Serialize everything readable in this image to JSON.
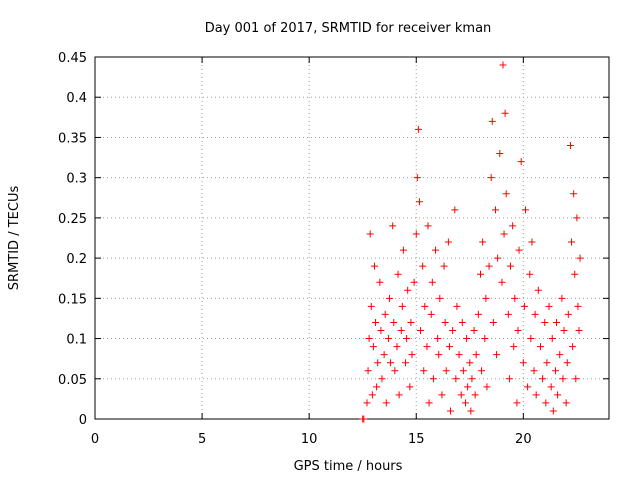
{
  "chart_data": {
    "type": "scatter",
    "title": "Day 001 of 2017, SRMTID for receiver kman",
    "xlabel": "GPS time / hours",
    "ylabel": "SRMTID / TECUs",
    "xlim": [
      0,
      24
    ],
    "ylim": [
      0,
      0.45
    ],
    "x_ticks": [
      "0",
      "5",
      "10",
      "15",
      "20"
    ],
    "y_ticks": [
      "0",
      "0.05",
      "0.1",
      "0.15",
      "0.2",
      "0.25",
      "0.3",
      "0.35",
      "0.4",
      "0.45"
    ],
    "grid": true,
    "marker": "plus",
    "color": "#ff0000",
    "series": [
      {
        "points": [
          [
            12.5,
            0.0
          ],
          [
            12.55,
            0.0
          ],
          [
            12.7,
            0.02
          ],
          [
            12.75,
            0.06
          ],
          [
            12.8,
            0.1
          ],
          [
            12.85,
            0.23
          ],
          [
            12.9,
            0.14
          ],
          [
            12.95,
            0.03
          ],
          [
            13.0,
            0.09
          ],
          [
            13.05,
            0.19
          ],
          [
            13.1,
            0.12
          ],
          [
            13.15,
            0.04
          ],
          [
            13.2,
            0.07
          ],
          [
            13.3,
            0.17
          ],
          [
            13.35,
            0.11
          ],
          [
            13.4,
            0.05
          ],
          [
            13.5,
            0.08
          ],
          [
            13.55,
            0.13
          ],
          [
            13.6,
            0.02
          ],
          [
            13.7,
            0.1
          ],
          [
            13.75,
            0.15
          ],
          [
            13.8,
            0.07
          ],
          [
            13.9,
            0.24
          ],
          [
            13.95,
            0.12
          ],
          [
            14.0,
            0.06
          ],
          [
            14.1,
            0.09
          ],
          [
            14.15,
            0.18
          ],
          [
            14.2,
            0.03
          ],
          [
            14.3,
            0.11
          ],
          [
            14.35,
            0.14
          ],
          [
            14.4,
            0.21
          ],
          [
            14.5,
            0.07
          ],
          [
            14.55,
            0.1
          ],
          [
            14.6,
            0.16
          ],
          [
            14.7,
            0.04
          ],
          [
            14.75,
            0.12
          ],
          [
            14.8,
            0.08
          ],
          [
            14.9,
            0.17
          ],
          [
            15.0,
            0.23
          ],
          [
            15.05,
            0.3
          ],
          [
            15.1,
            0.36
          ],
          [
            15.15,
            0.27
          ],
          [
            15.2,
            0.11
          ],
          [
            15.3,
            0.19
          ],
          [
            15.35,
            0.06
          ],
          [
            15.4,
            0.14
          ],
          [
            15.5,
            0.09
          ],
          [
            15.55,
            0.24
          ],
          [
            15.6,
            0.02
          ],
          [
            15.7,
            0.13
          ],
          [
            15.75,
            0.17
          ],
          [
            15.8,
            0.05
          ],
          [
            15.9,
            0.21
          ],
          [
            16.0,
            0.1
          ],
          [
            16.05,
            0.08
          ],
          [
            16.1,
            0.15
          ],
          [
            16.2,
            0.03
          ],
          [
            16.3,
            0.19
          ],
          [
            16.35,
            0.12
          ],
          [
            16.4,
            0.06
          ],
          [
            16.5,
            0.22
          ],
          [
            16.55,
            0.09
          ],
          [
            16.6,
            0.01
          ],
          [
            16.7,
            0.11
          ],
          [
            16.8,
            0.26
          ],
          [
            16.85,
            0.05
          ],
          [
            16.9,
            0.14
          ],
          [
            17.0,
            0.08
          ],
          [
            17.1,
            0.03
          ],
          [
            17.15,
            0.12
          ],
          [
            17.2,
            0.06
          ],
          [
            17.3,
            0.02
          ],
          [
            17.35,
            0.1
          ],
          [
            17.4,
            0.04
          ],
          [
            17.5,
            0.07
          ],
          [
            17.55,
            0.01
          ],
          [
            17.6,
            0.05
          ],
          [
            17.7,
            0.11
          ],
          [
            17.75,
            0.03
          ],
          [
            17.8,
            0.08
          ],
          [
            17.9,
            0.13
          ],
          [
            18.0,
            0.18
          ],
          [
            18.05,
            0.06
          ],
          [
            18.1,
            0.22
          ],
          [
            18.2,
            0.1
          ],
          [
            18.25,
            0.15
          ],
          [
            18.3,
            0.04
          ],
          [
            18.4,
            0.19
          ],
          [
            18.5,
            0.3
          ],
          [
            18.55,
            0.37
          ],
          [
            18.6,
            0.12
          ],
          [
            18.7,
            0.26
          ],
          [
            18.75,
            0.08
          ],
          [
            18.8,
            0.2
          ],
          [
            18.9,
            0.33
          ],
          [
            19.0,
            0.17
          ],
          [
            19.05,
            0.44
          ],
          [
            19.1,
            0.23
          ],
          [
            19.15,
            0.38
          ],
          [
            19.2,
            0.28
          ],
          [
            19.3,
            0.13
          ],
          [
            19.35,
            0.05
          ],
          [
            19.4,
            0.19
          ],
          [
            19.5,
            0.24
          ],
          [
            19.55,
            0.09
          ],
          [
            19.6,
            0.15
          ],
          [
            19.7,
            0.02
          ],
          [
            19.75,
            0.11
          ],
          [
            19.8,
            0.21
          ],
          [
            19.9,
            0.32
          ],
          [
            20.0,
            0.07
          ],
          [
            20.05,
            0.14
          ],
          [
            20.1,
            0.26
          ],
          [
            20.2,
            0.04
          ],
          [
            20.3,
            0.18
          ],
          [
            20.35,
            0.1
          ],
          [
            20.4,
            0.22
          ],
          [
            20.5,
            0.06
          ],
          [
            20.55,
            0.13
          ],
          [
            20.6,
            0.03
          ],
          [
            20.7,
            0.16
          ],
          [
            20.8,
            0.09
          ],
          [
            20.9,
            0.05
          ],
          [
            21.0,
            0.12
          ],
          [
            21.05,
            0.02
          ],
          [
            21.1,
            0.07
          ],
          [
            21.2,
            0.14
          ],
          [
            21.3,
            0.04
          ],
          [
            21.35,
            0.1
          ],
          [
            21.4,
            0.01
          ],
          [
            21.5,
            0.06
          ],
          [
            21.55,
            0.12
          ],
          [
            21.6,
            0.03
          ],
          [
            21.7,
            0.08
          ],
          [
            21.8,
            0.15
          ],
          [
            21.85,
            0.05
          ],
          [
            21.9,
            0.11
          ],
          [
            22.0,
            0.02
          ],
          [
            22.05,
            0.07
          ],
          [
            22.1,
            0.13
          ],
          [
            22.2,
            0.34
          ],
          [
            22.25,
            0.22
          ],
          [
            22.3,
            0.09
          ],
          [
            22.35,
            0.28
          ],
          [
            22.4,
            0.18
          ],
          [
            22.45,
            0.05
          ],
          [
            22.5,
            0.25
          ],
          [
            22.55,
            0.14
          ],
          [
            22.6,
            0.11
          ],
          [
            22.65,
            0.2
          ]
        ]
      }
    ]
  }
}
